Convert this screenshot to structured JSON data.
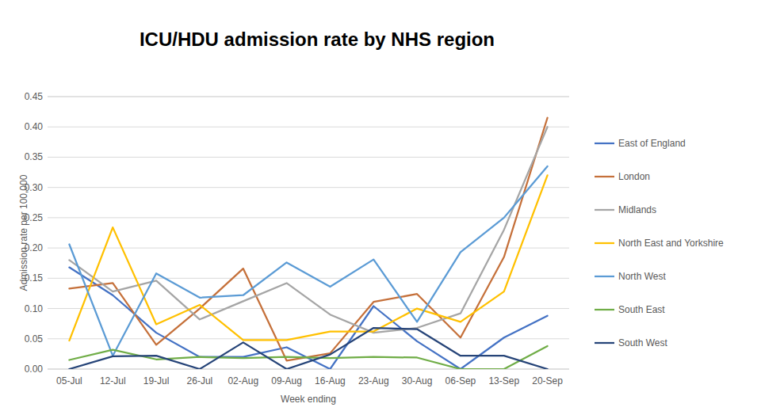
{
  "chart_data": {
    "type": "line",
    "title": "ICU/HDU admission rate by NHS region",
    "x_label": "Week ending",
    "y_label": "Admission rate per 100,000",
    "categories": [
      "05-Jul",
      "12-Jul",
      "19-Jul",
      "26-Jul",
      "02-Aug",
      "09-Aug",
      "16-Aug",
      "23-Aug",
      "30-Aug",
      "06-Sep",
      "13-Sep",
      "20-Sep"
    ],
    "series": [
      {
        "name": "East of England",
        "color": "#4472c4",
        "values": [
          0.168,
          0.122,
          0.06,
          0.02,
          0.02,
          0.036,
          0.0,
          0.104,
          0.046,
          0.0,
          0.052,
          0.088
        ]
      },
      {
        "name": "London",
        "color": "#c5703a",
        "values": [
          0.133,
          0.142,
          0.04,
          0.1,
          0.166,
          0.014,
          0.026,
          0.111,
          0.124,
          0.052,
          0.185,
          0.415
        ]
      },
      {
        "name": "Midlands",
        "color": "#a5a5a5",
        "values": [
          0.18,
          0.128,
          0.146,
          0.082,
          0.112,
          0.142,
          0.09,
          0.06,
          0.068,
          0.092,
          0.23,
          0.4
        ]
      },
      {
        "name": "North East and Yorkshire",
        "color": "#ffc000",
        "values": [
          0.047,
          0.234,
          0.074,
          0.106,
          0.048,
          0.048,
          0.062,
          0.062,
          0.1,
          0.078,
          0.128,
          0.32
        ]
      },
      {
        "name": "North West",
        "color": "#5b9bd5",
        "values": [
          0.206,
          0.022,
          0.158,
          0.118,
          0.122,
          0.176,
          0.136,
          0.181,
          0.078,
          0.193,
          0.25,
          0.335
        ]
      },
      {
        "name": "South East",
        "color": "#70ad47",
        "values": [
          0.015,
          0.032,
          0.016,
          0.02,
          0.018,
          0.02,
          0.018,
          0.02,
          0.019,
          0.0,
          0.0,
          0.038
        ]
      },
      {
        "name": "South West",
        "color": "#264478",
        "values": [
          0.0,
          0.021,
          0.022,
          0.0,
          0.044,
          0.0,
          0.024,
          0.068,
          0.066,
          0.022,
          0.022,
          0.0
        ]
      }
    ],
    "ylim": [
      0,
      0.45
    ],
    "yticks": [
      {
        "value": 0,
        "label": "0.00"
      },
      {
        "value": 0.05,
        "label": "0.05"
      },
      {
        "value": 0.1,
        "label": "0.10"
      },
      {
        "value": 0.15,
        "label": "0.15"
      },
      {
        "value": 0.2,
        "label": "0.20"
      },
      {
        "value": 0.25,
        "label": "0.25"
      },
      {
        "value": 0.3,
        "label": "0.30"
      },
      {
        "value": 0.35,
        "label": "0.35"
      },
      {
        "value": 0.4,
        "label": "0.40"
      },
      {
        "value": 0.45,
        "label": "0.45"
      }
    ],
    "grid": true,
    "legend": "right"
  }
}
